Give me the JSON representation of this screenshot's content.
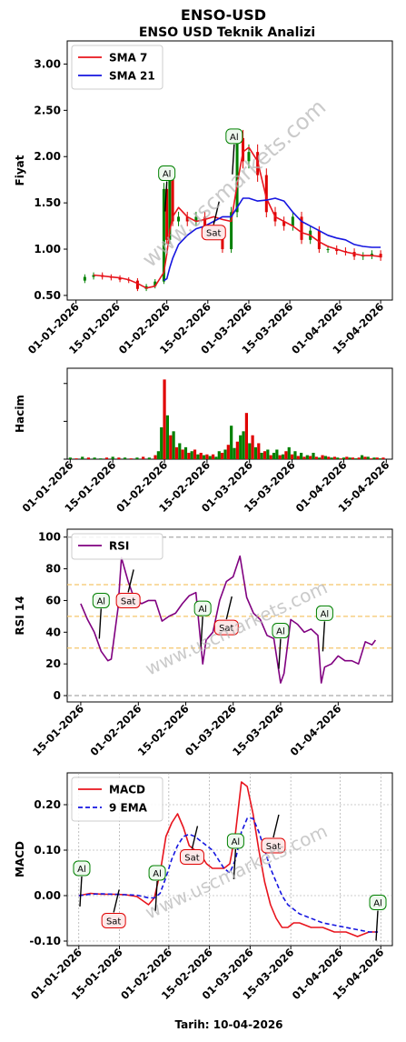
{
  "title": "ENSO-USD",
  "subtitle": "ENSO USD Teknik Analizi",
  "footer": "Tarih: 10-04-2026",
  "watermark": "www.uscmarkets.com",
  "colors": {
    "sma7": "#e8141d",
    "sma21": "#1515e0",
    "rsi": "#800080",
    "macd": "#e8141d",
    "ema9": "#1515e0",
    "up": "#008000",
    "down": "#e00000",
    "ref": "#f5c56b"
  },
  "date_ticks": [
    "01-01-2026",
    "15-01-2026",
    "01-02-2026",
    "15-02-2026",
    "01-03-2026",
    "15-03-2026",
    "01-04-2026",
    "15-04-2026"
  ],
  "rsi_date_ticks": [
    "15-01-2026",
    "01-02-2026",
    "15-02-2026",
    "01-03-2026",
    "15-03-2026",
    "01-04-2026"
  ],
  "chart_data": [
    {
      "type": "line",
      "name": "price",
      "ylabel": "Fiyat",
      "ylim": [
        0.45,
        3.25
      ],
      "yticks": [
        "0.50",
        "1.00",
        "1.50",
        "2.00",
        "2.50",
        "3.00"
      ],
      "legend": [
        "SMA 7",
        "SMA 21"
      ],
      "legend_position": "top-left",
      "x_days": [
        0,
        3,
        6,
        9,
        12,
        15,
        18,
        21,
        24,
        27,
        30,
        31,
        32,
        33,
        35,
        38,
        41,
        44,
        47,
        50,
        53,
        55,
        57,
        59,
        62,
        65,
        68,
        71,
        74,
        77,
        80,
        83,
        86,
        89,
        92,
        95,
        98,
        101,
        104
      ],
      "close": [
        0.66,
        0.7,
        0.72,
        0.7,
        0.69,
        0.67,
        0.66,
        0.57,
        0.6,
        0.65,
        1.65,
        1.1,
        1.75,
        1.3,
        1.35,
        1.3,
        1.35,
        1.25,
        1.2,
        1.0,
        1.4,
        2.2,
        1.95,
        2.05,
        1.8,
        1.4,
        1.3,
        1.25,
        1.35,
        1.1,
        1.2,
        1.0,
        1.0,
        0.98,
        0.97,
        0.92,
        0.93,
        0.95,
        0.91
      ],
      "sma7": [
        null,
        null,
        0.72,
        0.71,
        0.7,
        0.69,
        0.67,
        0.63,
        0.58,
        0.6,
        0.75,
        0.95,
        1.2,
        1.35,
        1.45,
        1.35,
        1.3,
        1.32,
        1.35,
        1.32,
        1.3,
        1.7,
        2.05,
        2.1,
        1.95,
        1.55,
        1.35,
        1.3,
        1.25,
        1.18,
        1.15,
        1.08,
        1.03,
        1.0,
        0.97,
        0.95,
        0.93,
        0.93,
        0.92
      ],
      "sma21": [
        null,
        null,
        null,
        null,
        null,
        null,
        null,
        null,
        null,
        null,
        0.66,
        0.68,
        0.8,
        0.9,
        1.05,
        1.15,
        1.22,
        1.25,
        1.3,
        1.35,
        1.35,
        1.45,
        1.55,
        1.55,
        1.52,
        1.53,
        1.55,
        1.52,
        1.4,
        1.3,
        1.25,
        1.2,
        1.15,
        1.12,
        1.1,
        1.05,
        1.03,
        1.02,
        1.02
      ],
      "signals": [
        {
          "label": "Al",
          "kind": "buy",
          "x": 31,
          "y": 1.82
        },
        {
          "label": "Al",
          "kind": "buy",
          "x": 54,
          "y": 2.22
        },
        {
          "label": "Sat",
          "kind": "sell",
          "x": 47,
          "y": 1.18
        }
      ]
    },
    {
      "type": "bar",
      "name": "volume",
      "ylabel": "Hacim",
      "x_days": [
        0,
        2,
        4,
        6,
        8,
        10,
        12,
        14,
        16,
        18,
        20,
        22,
        24,
        26,
        28,
        29,
        30,
        31,
        32,
        33,
        34,
        35,
        36,
        37,
        38,
        39,
        40,
        41,
        42,
        43,
        44,
        45,
        46,
        47,
        48,
        49,
        50,
        51,
        52,
        53,
        54,
        55,
        56,
        57,
        58,
        59,
        60,
        61,
        62,
        63,
        64,
        65,
        66,
        67,
        68,
        69,
        70,
        71,
        72,
        73,
        74,
        75,
        76,
        77,
        78,
        79,
        80,
        81,
        82,
        83,
        84,
        85,
        86,
        87,
        88,
        89,
        90,
        91,
        92,
        93,
        94,
        95,
        96,
        97,
        98,
        99,
        100,
        101,
        102,
        103
      ],
      "values": [
        0.02,
        0.01,
        0.03,
        0.02,
        0.02,
        0.01,
        0.02,
        0.03,
        0.02,
        0.02,
        0.01,
        0.02,
        0.03,
        0.02,
        0.05,
        0.1,
        0.4,
        1.0,
        0.55,
        0.3,
        0.35,
        0.15,
        0.2,
        0.12,
        0.15,
        0.08,
        0.1,
        0.12,
        0.06,
        0.08,
        0.05,
        0.06,
        0.04,
        0.06,
        0.03,
        0.1,
        0.08,
        0.12,
        0.18,
        0.42,
        0.14,
        0.22,
        0.3,
        0.35,
        0.58,
        0.2,
        0.3,
        0.15,
        0.2,
        0.08,
        0.1,
        0.12,
        0.05,
        0.08,
        0.12,
        0.05,
        0.06,
        0.1,
        0.15,
        0.06,
        0.1,
        0.04,
        0.08,
        0.03,
        0.05,
        0.04,
        0.08,
        0.03,
        0.02,
        0.05,
        0.04,
        0.03,
        0.02,
        0.03,
        0.02,
        0.01,
        0.02,
        0.03,
        0.02,
        0.02,
        0.01,
        0.02,
        0.05,
        0.03,
        0.03,
        0.01,
        0.02,
        0.02,
        0.01,
        0.02
      ],
      "up": [
        1,
        0,
        1,
        0,
        1,
        1,
        0,
        1,
        0,
        1,
        0,
        1,
        0,
        1,
        0,
        1,
        1,
        0,
        1,
        0,
        1,
        0,
        1,
        0,
        1,
        0,
        1,
        0,
        1,
        0,
        1,
        0,
        1,
        0,
        1,
        1,
        0,
        1,
        0,
        1,
        1,
        0,
        1,
        1,
        0,
        1,
        0,
        1,
        0,
        1,
        0,
        1,
        0,
        1,
        1,
        0,
        1,
        0,
        1,
        0,
        1,
        0,
        1,
        0,
        1,
        0,
        1,
        0,
        1,
        0,
        1,
        0,
        1,
        0,
        1,
        0,
        1,
        0,
        1,
        0,
        1,
        0,
        1,
        0,
        1,
        0,
        1,
        0,
        1,
        0
      ]
    },
    {
      "type": "line",
      "name": "rsi",
      "ylabel": "RSI 14",
      "ylim": [
        -4,
        105
      ],
      "yticks": [
        "0",
        "20",
        "40",
        "60",
        "80",
        "100"
      ],
      "ref_lines": [
        0,
        30,
        50,
        70,
        100
      ],
      "legend": [
        "RSI"
      ],
      "legend_position": "top-left",
      "x_days": [
        14,
        16,
        18,
        20,
        22,
        23,
        25,
        26,
        28,
        30,
        32,
        34,
        36,
        38,
        40,
        42,
        44,
        46,
        48,
        50,
        51,
        53,
        55,
        57,
        59,
        61,
        63,
        65,
        67,
        69,
        71,
        73,
        74,
        76,
        78,
        80,
        82,
        84,
        85,
        86,
        88,
        90,
        92,
        94,
        96,
        98,
        100,
        101
      ],
      "values": [
        58,
        48,
        40,
        28,
        22,
        23,
        55,
        87,
        72,
        60,
        58,
        60,
        60,
        47,
        50,
        52,
        58,
        63,
        65,
        20,
        35,
        40,
        60,
        72,
        75,
        88,
        62,
        52,
        48,
        38,
        36,
        8,
        14,
        48,
        45,
        40,
        42,
        38,
        8,
        18,
        20,
        25,
        22,
        22,
        20,
        34,
        32,
        35
      ],
      "signals": [
        {
          "label": "Al",
          "kind": "buy",
          "x": 20,
          "y": 60
        },
        {
          "label": "Sat",
          "kind": "sell",
          "x": 28,
          "y": 60
        },
        {
          "label": "Al",
          "kind": "buy",
          "x": 50,
          "y": 55
        },
        {
          "label": "Sat",
          "kind": "sell",
          "x": 57,
          "y": 43
        },
        {
          "label": "Al",
          "kind": "buy",
          "x": 73,
          "y": 41
        },
        {
          "label": "Al",
          "kind": "buy",
          "x": 86,
          "y": 52
        }
      ]
    },
    {
      "type": "line",
      "name": "macd",
      "ylabel": "MACD",
      "xlabel": "Tarih: 10-04-2026",
      "ylim": [
        -0.11,
        0.27
      ],
      "yticks": [
        "-0.10",
        "0.00",
        "0.10",
        "0.20"
      ],
      "legend": [
        "MACD",
        "9 EMA"
      ],
      "legend_position": "top-left",
      "x_days": [
        0,
        4,
        8,
        12,
        16,
        20,
        24,
        26,
        28,
        30,
        32,
        34,
        36,
        38,
        40,
        42,
        44,
        46,
        48,
        50,
        52,
        54,
        56,
        58,
        60,
        62,
        64,
        66,
        68,
        70,
        72,
        74,
        76,
        78,
        80,
        84,
        88,
        92,
        96,
        100,
        103
      ],
      "macd": [
        0.0,
        0.005,
        0.003,
        0.003,
        0.002,
        -0.002,
        -0.02,
        -0.005,
        0.05,
        0.13,
        0.16,
        0.18,
        0.15,
        0.11,
        0.1,
        0.09,
        0.07,
        0.06,
        0.06,
        0.06,
        0.07,
        0.14,
        0.25,
        0.24,
        0.18,
        0.1,
        0.03,
        -0.02,
        -0.05,
        -0.07,
        -0.07,
        -0.06,
        -0.06,
        -0.065,
        -0.07,
        -0.07,
        -0.08,
        -0.08,
        -0.09,
        -0.08,
        -0.08
      ],
      "ema9": [
        0.0,
        0.003,
        0.004,
        0.003,
        0.002,
        0.001,
        -0.005,
        -0.005,
        0.005,
        0.04,
        0.08,
        0.11,
        0.13,
        0.135,
        0.13,
        0.12,
        0.11,
        0.1,
        0.08,
        0.06,
        0.05,
        0.08,
        0.14,
        0.17,
        0.17,
        0.14,
        0.1,
        0.06,
        0.03,
        0.0,
        -0.02,
        -0.03,
        -0.04,
        -0.045,
        -0.05,
        -0.06,
        -0.065,
        -0.07,
        -0.075,
        -0.08,
        -0.08
      ],
      "signals": [
        {
          "label": "Al",
          "kind": "buy",
          "x": 1,
          "y": 0.06
        },
        {
          "label": "Sat",
          "kind": "sell",
          "x": 12,
          "y": -0.055
        },
        {
          "label": "Al",
          "kind": "buy",
          "x": 27,
          "y": 0.05
        },
        {
          "label": "Sat",
          "kind": "sell",
          "x": 39,
          "y": 0.085
        },
        {
          "label": "Al",
          "kind": "buy",
          "x": 54,
          "y": 0.12
        },
        {
          "label": "Sat",
          "kind": "sell",
          "x": 67,
          "y": 0.11
        },
        {
          "label": "Al",
          "kind": "buy",
          "x": 103,
          "y": -0.015
        }
      ]
    }
  ]
}
